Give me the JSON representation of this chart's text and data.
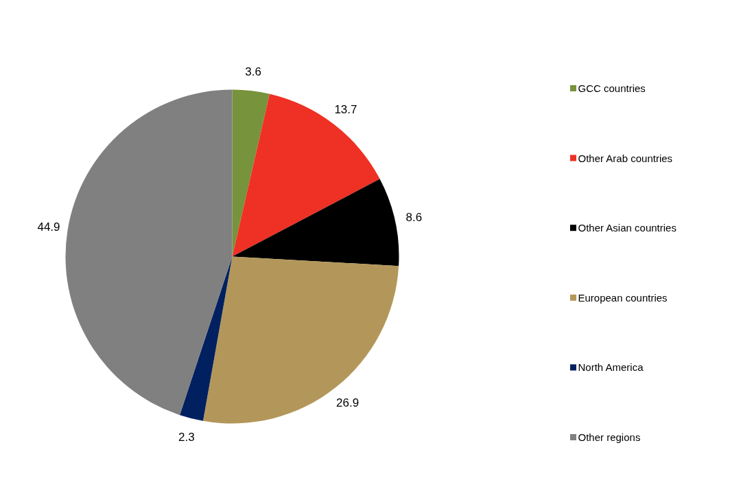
{
  "chart_data": {
    "type": "pie",
    "categories": [
      "GCC countries",
      "Other Arab countries",
      "Other Asian countries",
      "European countries",
      "North America",
      "Other regions"
    ],
    "values": [
      3.6,
      13.7,
      8.6,
      26.9,
      2.3,
      44.9
    ],
    "colors": [
      "#77933c",
      "#ee3124",
      "#000000",
      "#b3975a",
      "#002060",
      "#808080"
    ],
    "data_labels": true,
    "legend": "right"
  }
}
